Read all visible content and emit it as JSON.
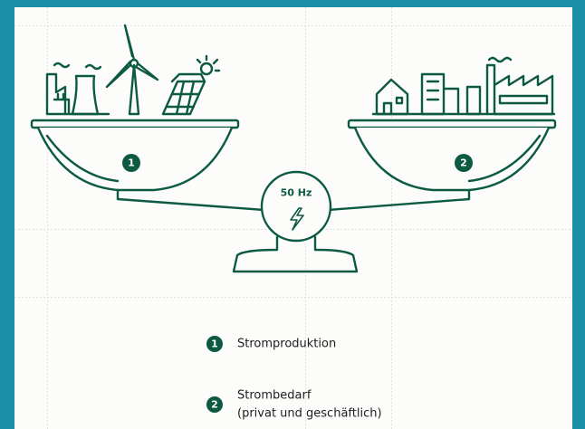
{
  "scale": {
    "center_label": "50 Hz",
    "left_badge": "1",
    "right_badge": "2"
  },
  "legend": [
    {
      "badge": "1",
      "lines": [
        "Stromproduktion"
      ]
    },
    {
      "badge": "2",
      "lines": [
        "Strombedarf",
        "(privat und geschäftlich)"
      ]
    }
  ]
}
